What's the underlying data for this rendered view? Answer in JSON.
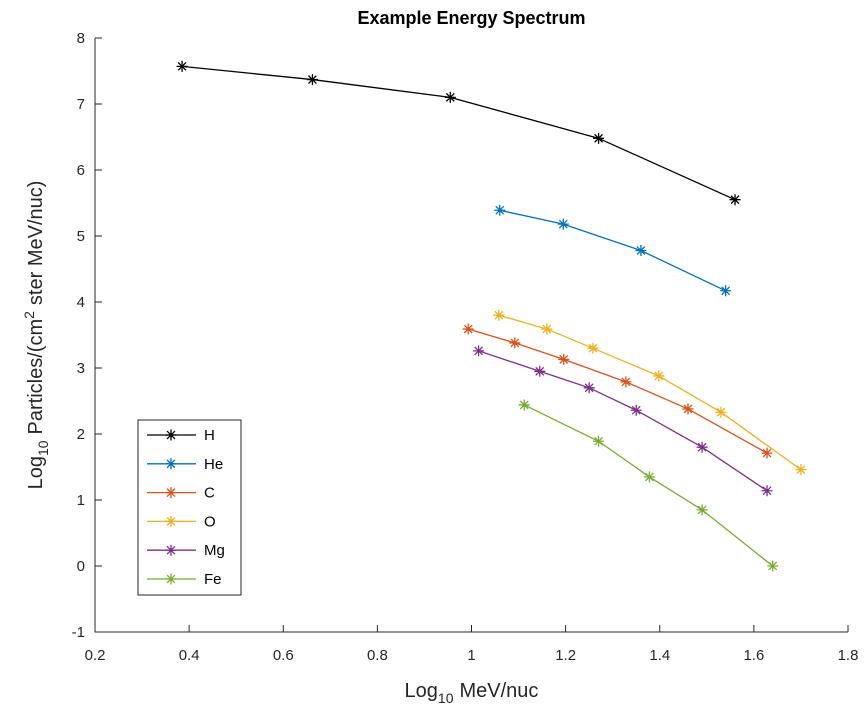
{
  "chart_data": {
    "type": "line",
    "title": "Example Energy Spectrum",
    "xlabel": {
      "base": "Log",
      "sub": "10",
      "rest": "MeV/nuc"
    },
    "ylabel": {
      "base": "Log",
      "sub": "10",
      "mid": "Particles/(cm",
      "sup": "2",
      "rest": "ster MeV/nuc)"
    },
    "xlim": [
      0.2,
      1.8
    ],
    "ylim": [
      -1,
      8
    ],
    "xticks": [
      "0.2",
      "0.4",
      "0.6",
      "0.8",
      "1",
      "1.2",
      "1.4",
      "1.6",
      "1.8"
    ],
    "yticks": [
      "-1",
      "0",
      "1",
      "2",
      "3",
      "4",
      "5",
      "6",
      "7",
      "8"
    ],
    "grid": false,
    "legend_position": "bottom-left",
    "marker": "asterisk",
    "series": [
      {
        "name": "H",
        "color": "#000000",
        "x": [
          0.385,
          0.662,
          0.955,
          1.27,
          1.56
        ],
        "y": [
          7.57,
          7.37,
          7.1,
          6.48,
          5.55
        ]
      },
      {
        "name": "He",
        "color": "#0072BD",
        "x": [
          1.06,
          1.195,
          1.36,
          1.54
        ],
        "y": [
          5.39,
          5.18,
          4.78,
          4.17
        ]
      },
      {
        "name": "C",
        "color": "#D95319",
        "x": [
          0.993,
          1.092,
          1.196,
          1.328,
          1.46,
          1.628
        ],
        "y": [
          3.59,
          3.38,
          3.13,
          2.79,
          2.38,
          1.71
        ]
      },
      {
        "name": "O",
        "color": "#EDB120",
        "x": [
          1.058,
          1.16,
          1.258,
          1.398,
          1.53,
          1.7
        ],
        "y": [
          3.8,
          3.59,
          3.3,
          2.88,
          2.33,
          1.46
        ]
      },
      {
        "name": "Mg",
        "color": "#7E2F8E",
        "x": [
          1.015,
          1.145,
          1.25,
          1.35,
          1.49,
          1.628
        ],
        "y": [
          3.26,
          2.95,
          2.7,
          2.36,
          1.8,
          1.14
        ]
      },
      {
        "name": "Fe",
        "color": "#77AC30",
        "x": [
          1.112,
          1.27,
          1.378,
          1.49,
          1.64
        ],
        "y": [
          2.44,
          1.89,
          1.35,
          0.85,
          0.0
        ]
      }
    ]
  }
}
